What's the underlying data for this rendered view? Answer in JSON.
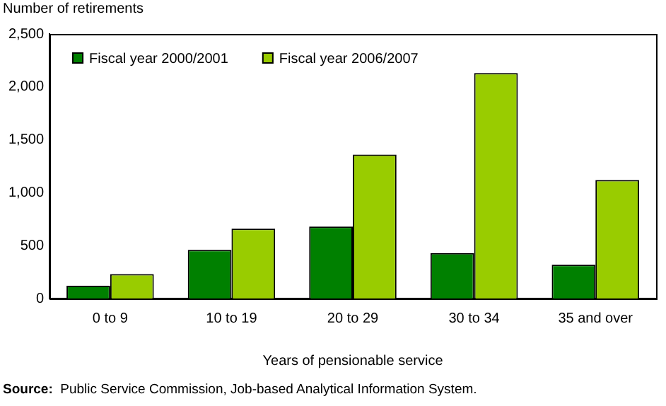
{
  "chart_data": {
    "type": "bar",
    "ylabel": "Number of retirements",
    "xlabel": "Years of pensionable service",
    "categories": [
      "0 to 9",
      "10 to 19",
      "20 to 29",
      "30 to 34",
      "35 and over"
    ],
    "series": [
      {
        "name": "Fiscal year 2000/2001",
        "color": "#008000",
        "values": [
          120,
          460,
          680,
          430,
          320
        ]
      },
      {
        "name": "Fiscal year 2006/2007",
        "color": "#99cc00",
        "values": [
          230,
          660,
          1360,
          2130,
          1120
        ]
      }
    ],
    "ylim": [
      0,
      2500
    ],
    "yticks": [
      0,
      500,
      {
        "value": 1000,
        "label": "1,000"
      },
      {
        "value": 1500,
        "label": "1,500"
      },
      {
        "value": 2000,
        "label": "2,000"
      },
      {
        "value": 2500,
        "label": "2,500"
      }
    ],
    "grid": false,
    "legend": "top left",
    "annotations": [
      "Source:  Public Service Commission, Job-based Analytical Information System."
    ]
  }
}
